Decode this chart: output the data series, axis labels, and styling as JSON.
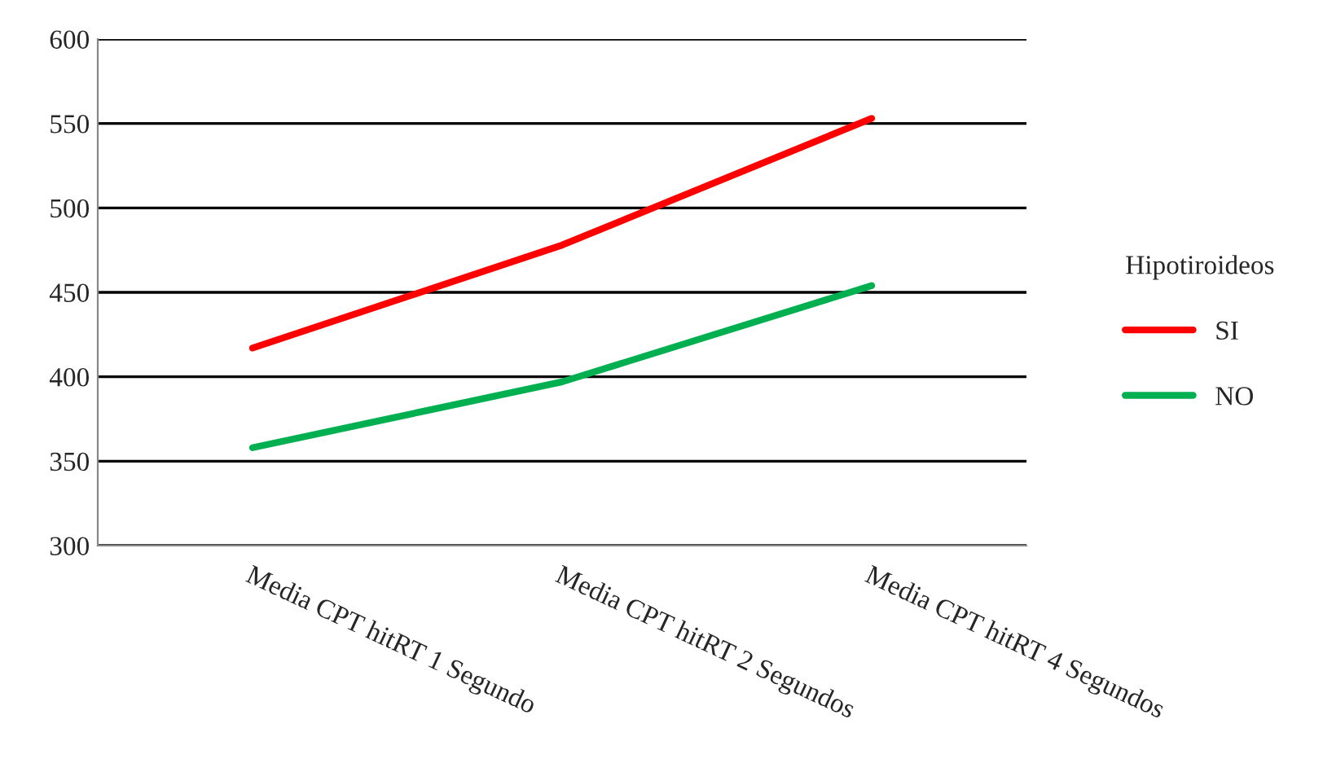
{
  "chart_data": {
    "type": "line",
    "categories": [
      "Media CPT hitRT 1 Segundo",
      "Media CPT hitRT 2 Segundos",
      "Media CPT hitRT 4 Segundos"
    ],
    "series": [
      {
        "name": "SI",
        "color": "#ff0000",
        "values": [
          417,
          478,
          553
        ]
      },
      {
        "name": "NO",
        "color": "#00b050",
        "values": [
          358,
          397,
          454
        ]
      }
    ],
    "legend_title": "Hipotiroideos",
    "legend": "right",
    "ylim": [
      300,
      600
    ],
    "yticks": [
      300,
      350,
      400,
      450,
      500,
      550,
      600
    ],
    "grid": "y",
    "marker": "none",
    "line_style": "solid"
  }
}
